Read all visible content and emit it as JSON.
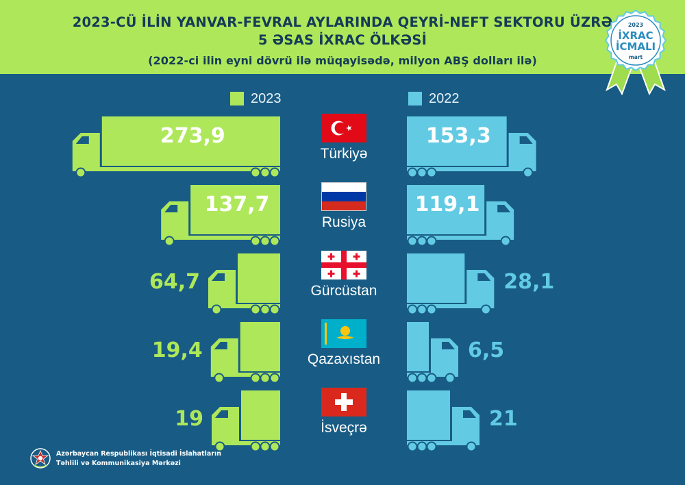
{
  "header": {
    "title_line_1": "2023-CÜ İLİN YANVAR-FEVRAL AYLARINDA QEYRİ-NEFT SEKTORU ÜZRƏ",
    "title_line_2": "5 ƏSAS İXRAC ÖLKƏSİ",
    "subtitle": "(2022-ci ilin eyni dövrü ilə müqayisədə, milyon ABŞ dolları ilə)"
  },
  "badge": {
    "year": "2023",
    "line_1": "İXRAC",
    "line_2": "İCMALI",
    "month": "mart"
  },
  "colors": {
    "background": "#185c85",
    "header": "#aee85a",
    "series_2023": "#aee85a",
    "series_2022": "#62cbe3"
  },
  "chart_data": {
    "type": "bar",
    "title": "2023-CÜ İLİN YANVAR-FEVRAL AYLARINDA QEYRİ-NEFT SEKTORU ÜZRƏ 5 ƏSAS İXRAC ÖLKƏSİ",
    "subtitle": "(2022-ci ilin eyni dövrü ilə müqayisədə, milyon ABŞ dolları ilə)",
    "categories": [
      "Türkiyə",
      "Rusiya",
      "Gürcüstan",
      "Qazaxıstan",
      "İsveçrə"
    ],
    "flags": [
      "turkey-flag",
      "russia-flag",
      "georgia-flag",
      "kazakhstan-flag",
      "switzerland-flag"
    ],
    "series": [
      {
        "name": "2023",
        "values": [
          273.9,
          137.7,
          64.7,
          19.4,
          19
        ],
        "labels": [
          "273,9",
          "137,7",
          "64,7",
          "19,4",
          "19"
        ]
      },
      {
        "name": "2022",
        "values": [
          153.3,
          119.1,
          28.1,
          6.5,
          21
        ],
        "labels": [
          "153,3",
          "119,1",
          "28,1",
          "6,5",
          "21"
        ]
      }
    ],
    "legend": [
      "2023",
      "2022"
    ],
    "legend_position": "top-center",
    "grid": false
  },
  "footer": {
    "line_1": "Azərbaycan Respublikası İqtisadi İslahatların",
    "line_2": "Təhlili və Kommunikasiya Mərkəzi"
  }
}
